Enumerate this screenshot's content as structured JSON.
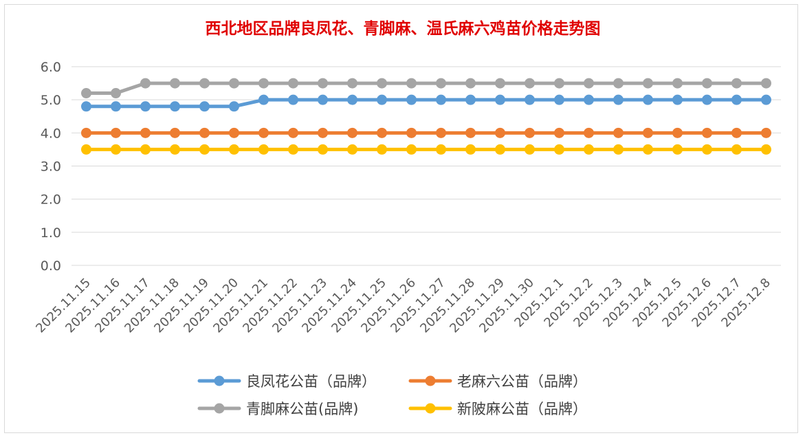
{
  "chart_data": {
    "type": "line",
    "title": "西北地区品牌良凤花、青脚麻、温氏麻六鸡苗价格走势图",
    "title_color": "#e00000",
    "xlabel": "",
    "ylabel": "",
    "ylim": [
      0,
      6
    ],
    "yticks": [
      "0.0",
      "1.0",
      "2.0",
      "3.0",
      "4.0",
      "5.0",
      "6.0"
    ],
    "grid": true,
    "legend_position": "bottom",
    "categories": [
      "2025.11.15",
      "2025.11.16",
      "2025.11.17",
      "2025.11.18",
      "2025.11.19",
      "2025.11.20",
      "2025.11.21",
      "2025.11.22",
      "2025.11.23",
      "2025.11.24",
      "2025.11.25",
      "2025.11.26",
      "2025.11.27",
      "2025.11.28",
      "2025.11.29",
      "2025.11.30",
      "2025.12.1",
      "2025.12.2",
      "2025.12.3",
      "2025.12.4",
      "2025.12.5",
      "2025.12.6",
      "2025.12.7",
      "2025.12.8"
    ],
    "series": [
      {
        "name": "良凤花公苗（品牌）",
        "color": "#5b9bd5",
        "values": [
          4.8,
          4.8,
          4.8,
          4.8,
          4.8,
          4.8,
          5.0,
          5.0,
          5.0,
          5.0,
          5.0,
          5.0,
          5.0,
          5.0,
          5.0,
          5.0,
          5.0,
          5.0,
          5.0,
          5.0,
          5.0,
          5.0,
          5.0,
          5.0
        ]
      },
      {
        "name": "老麻六公苗（品牌）",
        "color": "#ed7d31",
        "values": [
          4.0,
          4.0,
          4.0,
          4.0,
          4.0,
          4.0,
          4.0,
          4.0,
          4.0,
          4.0,
          4.0,
          4.0,
          4.0,
          4.0,
          4.0,
          4.0,
          4.0,
          4.0,
          4.0,
          4.0,
          4.0,
          4.0,
          4.0,
          4.0
        ]
      },
      {
        "name": "青脚麻公苗(品牌)",
        "color": "#a5a5a5",
        "values": [
          5.2,
          5.2,
          5.5,
          5.5,
          5.5,
          5.5,
          5.5,
          5.5,
          5.5,
          5.5,
          5.5,
          5.5,
          5.5,
          5.5,
          5.5,
          5.5,
          5.5,
          5.5,
          5.5,
          5.5,
          5.5,
          5.5,
          5.5,
          5.5
        ]
      },
      {
        "name": "新陂麻公苗（品牌）",
        "color": "#ffc000",
        "values": [
          3.5,
          3.5,
          3.5,
          3.5,
          3.5,
          3.5,
          3.5,
          3.5,
          3.5,
          3.5,
          3.5,
          3.5,
          3.5,
          3.5,
          3.5,
          3.5,
          3.5,
          3.5,
          3.5,
          3.5,
          3.5,
          3.5,
          3.5,
          3.5
        ]
      }
    ]
  }
}
